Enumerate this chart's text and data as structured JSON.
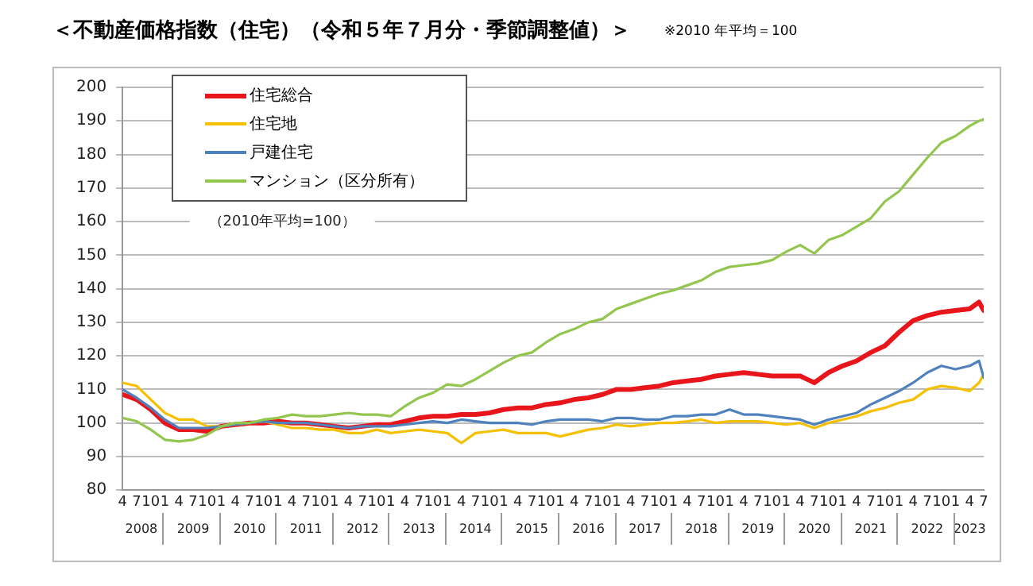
{
  "chart_data": {
    "type": "line",
    "title": "＜不動産価格指数（住宅）（令和５年７月分・季節調整値）＞",
    "subtitle": "※2010 年平均＝100",
    "annotations": [
      "（2010年平均=100）"
    ],
    "x": [
      "2008-04",
      "2008-07",
      "2008-10",
      "2009-01",
      "2009-04",
      "2009-07",
      "2009-10",
      "2010-01",
      "2010-04",
      "2010-07",
      "2010-10",
      "2011-01",
      "2011-04",
      "2011-07",
      "2011-10",
      "2012-01",
      "2012-04",
      "2012-07",
      "2012-10",
      "2013-01",
      "2013-04",
      "2013-07",
      "2013-10",
      "2014-01",
      "2014-04",
      "2014-07",
      "2014-10",
      "2015-01",
      "2015-04",
      "2015-07",
      "2015-10",
      "2016-01",
      "2016-04",
      "2016-07",
      "2016-10",
      "2017-01",
      "2017-04",
      "2017-07",
      "2017-10",
      "2018-01",
      "2018-04",
      "2018-07",
      "2018-10",
      "2019-01",
      "2019-04",
      "2019-07",
      "2019-10",
      "2020-01",
      "2020-04",
      "2020-07",
      "2020-10",
      "2021-01",
      "2021-04",
      "2021-07",
      "2021-10",
      "2022-01",
      "2022-04",
      "2022-07",
      "2022-10",
      "2023-01",
      "2023-04",
      "2023-06",
      "2023-07"
    ],
    "series": [
      {
        "name": "住宅総合",
        "color": "#e8151b",
        "values": [
          108.5,
          107,
          104,
          100,
          98,
          98,
          97.5,
          99,
          99.5,
          100,
          100,
          100.5,
          100,
          100,
          99.5,
          99,
          98.5,
          99,
          99.5,
          99.5,
          100.5,
          101.5,
          102,
          102,
          102.5,
          102.5,
          103,
          104,
          104.5,
          104.5,
          105.5,
          106,
          107,
          107.5,
          108.5,
          110,
          110,
          110.5,
          111,
          112,
          112.5,
          113,
          114,
          114.5,
          115,
          114.5,
          114,
          114,
          114,
          112,
          115,
          117,
          118.5,
          121,
          123,
          127,
          130.5,
          132,
          133,
          133.5,
          134,
          136,
          133.5
        ]
      },
      {
        "name": "住宅地",
        "color": "#f5c000",
        "values": [
          112,
          111,
          107,
          103,
          101,
          101,
          99,
          99,
          99.5,
          100,
          100.5,
          99.5,
          98.5,
          98.5,
          98,
          98,
          97,
          97,
          98,
          97,
          97.5,
          98,
          97.5,
          97,
          94,
          97,
          97.5,
          98,
          97,
          97,
          97,
          96,
          97,
          98,
          98.5,
          99.5,
          99,
          99.5,
          100,
          100,
          100.5,
          101,
          100,
          100.5,
          100.5,
          100.5,
          100,
          99.5,
          100,
          98.5,
          100,
          101,
          102,
          103.5,
          104.5,
          106,
          107,
          110,
          111,
          110.5,
          109.5,
          112,
          114.5
        ]
      },
      {
        "name": "戸建住宅",
        "color": "#4f81bd",
        "values": [
          110,
          107.5,
          104.5,
          101,
          98.5,
          98.5,
          98.5,
          99,
          99.5,
          100,
          100.5,
          100,
          100,
          100,
          99.5,
          99,
          98.5,
          99,
          99,
          99,
          99.5,
          100,
          100.5,
          100,
          101,
          100.5,
          100,
          100,
          100,
          99.5,
          100.5,
          101,
          101,
          101,
          100.5,
          101.5,
          101.5,
          101,
          101,
          102,
          102,
          102.5,
          102.5,
          104,
          102.5,
          102.5,
          102,
          101.5,
          101,
          99.5,
          101,
          102,
          103,
          105.5,
          107.5,
          109.5,
          112,
          115,
          117,
          116,
          117,
          118.5,
          113.5
        ]
      },
      {
        "name": "マンション（区分所有）",
        "color": "#93c64f",
        "values": [
          101.5,
          100.5,
          98,
          95,
          94.5,
          95,
          96.5,
          99,
          100,
          100,
          101,
          101.5,
          102.5,
          102,
          102,
          102.5,
          103,
          102.5,
          102.5,
          102,
          105,
          107.5,
          109,
          111.5,
          111,
          113,
          115.5,
          118,
          120,
          121,
          124,
          126.5,
          128,
          130,
          131,
          134,
          135.5,
          137,
          138.5,
          139.5,
          141,
          142.5,
          145,
          146.5,
          147,
          147.5,
          148.5,
          151,
          153,
          150.5,
          154.5,
          156,
          158.5,
          161,
          166,
          169,
          174,
          179,
          183.5,
          185.5,
          188.5,
          190,
          190.5
        ]
      }
    ],
    "xlim": [
      "2008-04",
      "2023-07"
    ],
    "xticks": [
      {
        "value": "2008-04",
        "label": "4"
      },
      {
        "value": "2008-07",
        "label": "7"
      },
      {
        "value": "2008-10",
        "label": "10"
      },
      {
        "value": "2009-01",
        "label": "1"
      },
      {
        "value": "2009-04",
        "label": "4"
      },
      {
        "value": "2009-07",
        "label": "7"
      },
      {
        "value": "2009-10",
        "label": "10"
      },
      {
        "value": "2010-01",
        "label": "1"
      },
      {
        "value": "2010-04",
        "label": "4"
      },
      {
        "value": "2010-07",
        "label": "7"
      },
      {
        "value": "2010-10",
        "label": "10"
      },
      {
        "value": "2011-01",
        "label": "1"
      },
      {
        "value": "2011-04",
        "label": "4"
      },
      {
        "value": "2011-07",
        "label": "7"
      },
      {
        "value": "2011-10",
        "label": "10"
      },
      {
        "value": "2012-01",
        "label": "1"
      },
      {
        "value": "2012-04",
        "label": "4"
      },
      {
        "value": "2012-07",
        "label": "7"
      },
      {
        "value": "2012-10",
        "label": "10"
      },
      {
        "value": "2013-01",
        "label": "1"
      },
      {
        "value": "2013-04",
        "label": "4"
      },
      {
        "value": "2013-07",
        "label": "7"
      },
      {
        "value": "2013-10",
        "label": "10"
      },
      {
        "value": "2014-01",
        "label": "1"
      },
      {
        "value": "2014-04",
        "label": "4"
      },
      {
        "value": "2014-07",
        "label": "7"
      },
      {
        "value": "2014-10",
        "label": "10"
      },
      {
        "value": "2015-01",
        "label": "1"
      },
      {
        "value": "2015-04",
        "label": "4"
      },
      {
        "value": "2015-07",
        "label": "7"
      },
      {
        "value": "2015-10",
        "label": "10"
      },
      {
        "value": "2016-01",
        "label": "1"
      },
      {
        "value": "2016-04",
        "label": "4"
      },
      {
        "value": "2016-07",
        "label": "7"
      },
      {
        "value": "2016-10",
        "label": "10"
      },
      {
        "value": "2017-01",
        "label": "1"
      },
      {
        "value": "2017-04",
        "label": "4"
      },
      {
        "value": "2017-07",
        "label": "7"
      },
      {
        "value": "2017-10",
        "label": "10"
      },
      {
        "value": "2018-01",
        "label": "1"
      },
      {
        "value": "2018-04",
        "label": "4"
      },
      {
        "value": "2018-07",
        "label": "7"
      },
      {
        "value": "2018-10",
        "label": "10"
      },
      {
        "value": "2019-01",
        "label": "1"
      },
      {
        "value": "2019-04",
        "label": "4"
      },
      {
        "value": "2019-07",
        "label": "7"
      },
      {
        "value": "2019-10",
        "label": "10"
      },
      {
        "value": "2020-01",
        "label": "1"
      },
      {
        "value": "2020-04",
        "label": "4"
      },
      {
        "value": "2020-07",
        "label": "7"
      },
      {
        "value": "2020-10",
        "label": "10"
      },
      {
        "value": "2021-01",
        "label": "1"
      },
      {
        "value": "2021-04",
        "label": "4"
      },
      {
        "value": "2021-07",
        "label": "7"
      },
      {
        "value": "2021-10",
        "label": "10"
      },
      {
        "value": "2022-01",
        "label": "1"
      },
      {
        "value": "2022-04",
        "label": "4"
      },
      {
        "value": "2022-07",
        "label": "7"
      },
      {
        "value": "2022-10",
        "label": "10"
      },
      {
        "value": "2023-01",
        "label": "1"
      },
      {
        "value": "2023-04",
        "label": "4"
      },
      {
        "value": "2023-07",
        "label": "7"
      }
    ],
    "x2lim": [
      "2008-04",
      "2023-07"
    ],
    "x2ticks": [
      {
        "value": "2008-08",
        "label": "2008"
      },
      {
        "value": "2009-07",
        "label": "2009"
      },
      {
        "value": "2010-07",
        "label": "2010"
      },
      {
        "value": "2011-07",
        "label": "2011"
      },
      {
        "value": "2012-07",
        "label": "2012"
      },
      {
        "value": "2013-07",
        "label": "2013"
      },
      {
        "value": "2014-07",
        "label": "2014"
      },
      {
        "value": "2015-07",
        "label": "2015"
      },
      {
        "value": "2016-07",
        "label": "2016"
      },
      {
        "value": "2017-07",
        "label": "2017"
      },
      {
        "value": "2018-07",
        "label": "2018"
      },
      {
        "value": "2019-07",
        "label": "2019"
      },
      {
        "value": "2020-07",
        "label": "2020"
      },
      {
        "value": "2021-07",
        "label": "2021"
      },
      {
        "value": "2022-07",
        "label": "2022"
      },
      {
        "value": "2023-04",
        "label": "2023"
      }
    ],
    "ylim": [
      80,
      200
    ],
    "yticks": [
      80,
      90,
      100,
      110,
      120,
      130,
      140,
      150,
      160,
      170,
      180,
      190,
      200
    ],
    "grid": "y",
    "legend": "top left",
    "marker": "none",
    "line_style": "solid"
  }
}
